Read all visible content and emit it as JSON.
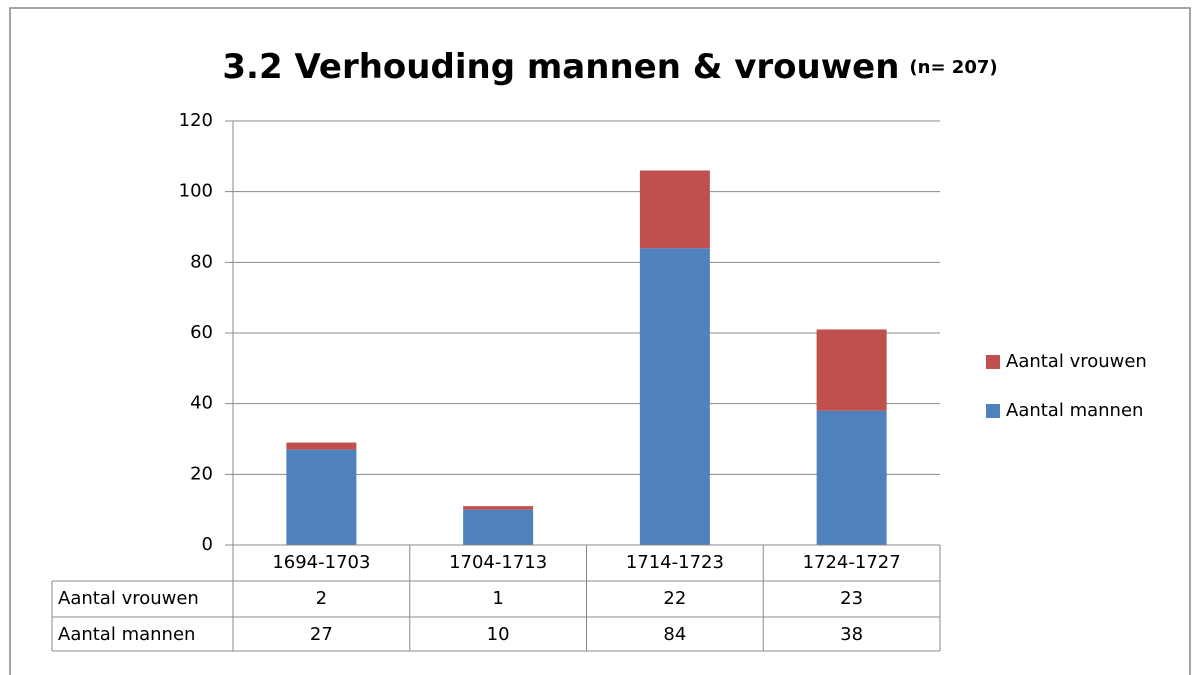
{
  "chart_data": {
    "type": "stacked_bar",
    "title": "3.2 Verhouding mannen & vrouwen",
    "subtitle": "(n= 207)",
    "categories": [
      "1694-1703",
      "1704-1713",
      "1714-1723",
      "1724-1727"
    ],
    "series": [
      {
        "name": "Aantal mannen",
        "color": "#4f81bd",
        "values": [
          27,
          10,
          84,
          38
        ]
      },
      {
        "name": "Aantal vrouwen",
        "color": "#c0504d",
        "values": [
          2,
          1,
          22,
          23
        ]
      }
    ],
    "ylim": [
      0,
      120
    ],
    "yticks": [
      0,
      20,
      40,
      60,
      80,
      100,
      120
    ],
    "grid": true,
    "legend": "right",
    "data_table": true
  }
}
